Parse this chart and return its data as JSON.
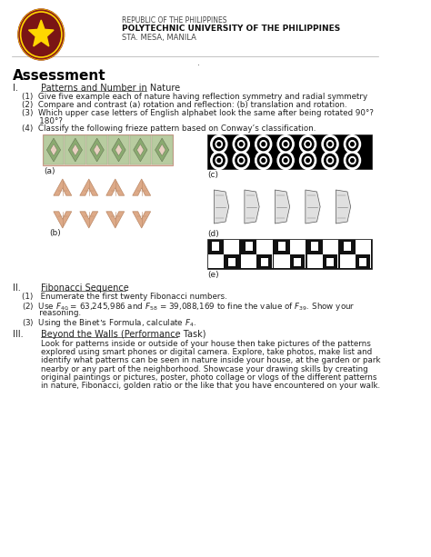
{
  "title": "Assessment",
  "header_line1": "REPUBLIC OF THE PHILIPPINES",
  "header_line2": "POLYTECHNIC UNIVERSITY OF THE PHILIPPINES",
  "header_line3": "STA. MESA, MANILA",
  "section_I": "I.",
  "section_I_title": "Patterns and Number in Nature",
  "item1": "(1)  Give five example each of nature having reflection symmetry and radial symmetry",
  "item2": "(2)  Compare and contrast (a) rotation and reflection: (b) translation and rotation.",
  "item3a": "(3)  Which upper case letters of English alphabet look the same after being rotated 90°?",
  "item3b": "       180°?",
  "item4": "(4)  Classify the following frieze pattern based on Conway’s classification.",
  "label_a": "(a)",
  "label_b": "(b)",
  "label_c": "(c)",
  "label_d": "(d)",
  "label_e": "(e)",
  "section_II": "II.",
  "section_II_title": "Fibonacci Sequence",
  "fib_item1": "(1)   Enumerate the first twenty Fibonacci numbers.",
  "fib_item2a": "(2)  Use $F_{40}$ = 63,245,986 and $F_{58}$ = 39,088,169 to fine the value of $F_{39}$. Show your",
  "fib_item2b": "       reasoning.",
  "fib_item3": "(3)  Using the Binet’s Formula, calculate $F_4$.",
  "section_III": "III.",
  "section_III_title": "Beyond the Walls (Performance Task)",
  "perf_lines": [
    "Look for patterns inside or outside of your house then take pictures of the patterns",
    "explored using smart phones or digital camera. Explore, take photos, make list and",
    "identify what patterns can be seen in nature inside your house, at the garden or park",
    "nearby or any part of the neighborhood. Showcase your drawing skills by creating",
    "original paintings or pictures, poster, photo collage or vlogs of the different patterns",
    "in nature, Fibonacci, golden ratio or the like that you have encountered on your walk."
  ],
  "bg_color": "#ffffff",
  "text_color": "#222222",
  "logo_outer_color": "#8B1A1A",
  "logo_inner_color": "#7a1515",
  "logo_star_color": "#FFD700",
  "logo_ring_color": "#FFD700"
}
